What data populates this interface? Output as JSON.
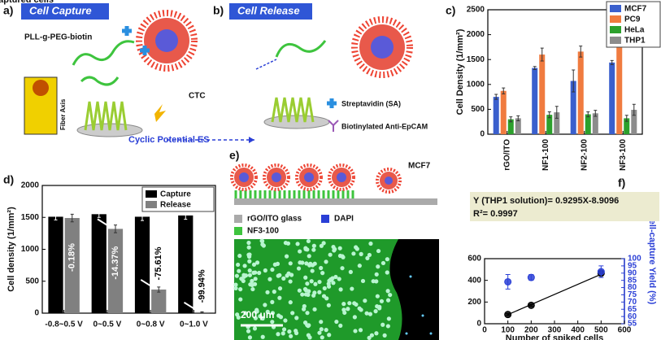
{
  "panels": {
    "a": {
      "letter": "a)",
      "title": "Cell Capture",
      "labels": [
        "PLL-g-PEG-biotin",
        "CTC",
        "Fiber Axis"
      ]
    },
    "b": {
      "letter": "b)",
      "title": "Cell Release",
      "labels": [
        "Streptavidin (SA)",
        "Biotinylated Anti-EpCAM",
        "Cyclic Potential ES"
      ]
    },
    "e": {
      "letter": "e)",
      "labels": [
        "MCF7",
        "rGO/ITO glass",
        "DAPI",
        "NF3-100",
        "200 μm"
      ]
    }
  },
  "chart_data": [
    {
      "type": "bar",
      "panel_label": "c)",
      "y_label": "Cell Density (1/mm²)",
      "categories": [
        "rGO/ITO",
        "NF1-100",
        "NF2-100",
        "NF3-100"
      ],
      "series": [
        {
          "name": "MCF7",
          "color": "#3a5fcd",
          "values": [
            750,
            1330,
            1070,
            1440
          ],
          "errors": [
            50,
            30,
            220,
            40
          ]
        },
        {
          "name": "PC9",
          "color": "#f07b3f",
          "values": [
            870,
            1600,
            1660,
            1940
          ],
          "errors": [
            60,
            130,
            110,
            50
          ]
        },
        {
          "name": "HeLa",
          "color": "#2ca02c",
          "values": [
            300,
            390,
            400,
            320
          ],
          "errors": [
            50,
            60,
            50,
            60
          ]
        },
        {
          "name": "THP1",
          "color": "#8c8c8c",
          "values": [
            320,
            440,
            420,
            490
          ],
          "errors": [
            50,
            120,
            60,
            110
          ]
        }
      ],
      "ylim": [
        0,
        2500
      ],
      "yticks": [
        0,
        500,
        1000,
        1500,
        2000,
        2500
      ],
      "legend": "upper right"
    },
    {
      "type": "bar",
      "panel_label": "d)",
      "y_label": "Cell density (1/mm²)",
      "categories": [
        "-0.8~0.5 V",
        "0~0.5 V",
        "0~0.8 V",
        "0~1.0 V"
      ],
      "series": [
        {
          "name": "Capture",
          "color": "#000000",
          "values": [
            1510,
            1550,
            1510,
            1530
          ],
          "errors": [
            50,
            50,
            60,
            60
          ]
        },
        {
          "name": "Release",
          "color": "#808080",
          "values": [
            1490,
            1320,
            370,
            15
          ],
          "errors": [
            60,
            60,
            40,
            5
          ]
        }
      ],
      "annotations": [
        "-0.18%",
        "-14.37%",
        "-75.61%",
        "-99.94%"
      ],
      "ylim": [
        0,
        2000
      ],
      "yticks": [
        0,
        500,
        1000,
        1500,
        2000
      ],
      "legend": "upper right"
    },
    {
      "type": "scatter",
      "panel_label": "f)",
      "x_label": "Number of spiked cells",
      "y_label": "Number of captured cells",
      "y2_label": "Cell-capture Yield (%)",
      "x": [
        100,
        200,
        500
      ],
      "series": [
        {
          "color": "#000000",
          "values": [
            85,
            170,
            465
          ],
          "errors": [
            8,
            8,
            15
          ]
        },
        {
          "color": "#2a3fd6",
          "values": [
            84,
            87,
            91
          ],
          "errors": [
            5,
            2,
            4
          ],
          "axis": "y2"
        }
      ],
      "fit": {
        "slope": 0.9295,
        "intercept": -8.9096,
        "label": "Y (THP1 solution)= 0.9295X-8.9096",
        "r2_label": "R²= 0.9997"
      },
      "xlim": [
        0,
        600
      ],
      "xticks": [
        0,
        100,
        200,
        300,
        400,
        500,
        600
      ],
      "ylim": [
        0,
        600
      ],
      "yticks": [
        0,
        200,
        400,
        600
      ],
      "y2lim": [
        55,
        100
      ],
      "y2ticks": [
        55,
        60,
        65,
        70,
        75,
        80,
        85,
        90,
        95,
        100
      ]
    }
  ]
}
